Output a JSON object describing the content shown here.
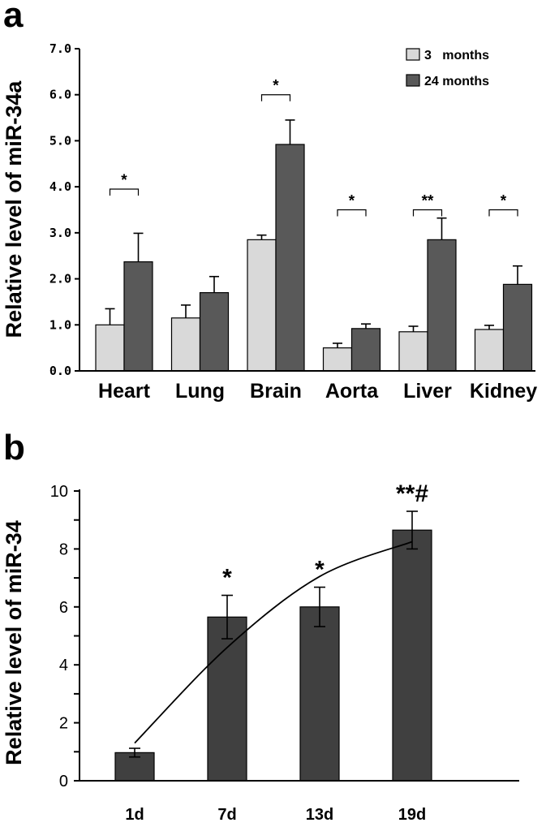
{
  "figure": {
    "panel_a_label": "a",
    "panel_b_label": "b"
  },
  "colors": {
    "light_bar": "#d9d9d9",
    "dark_bar": "#595959",
    "bar_b": "#404040",
    "axis": "#000000"
  },
  "chart_data": [
    {
      "panel": "a",
      "type": "bar",
      "ylabel": "Relative level of miR-34a",
      "xlabel": "",
      "ylim": [
        0,
        7
      ],
      "yticks": [
        "0.0",
        "1.0",
        "2.0",
        "3.0",
        "4.0",
        "5.0",
        "6.0",
        "7.0"
      ],
      "categories": [
        "Heart",
        "Lung",
        "Brain",
        "Aorta",
        "Liver",
        "Kidney"
      ],
      "series": [
        {
          "name": "3   months",
          "color": "#d9d9d9",
          "values": [
            1.0,
            1.15,
            2.85,
            0.5,
            0.85,
            0.9
          ],
          "errors": [
            0.35,
            0.28,
            0.1,
            0.1,
            0.12,
            0.09
          ]
        },
        {
          "name": "24 months",
          "color": "#595959",
          "values": [
            2.37,
            1.7,
            4.92,
            0.92,
            2.85,
            1.88
          ],
          "errors": [
            0.62,
            0.35,
            0.53,
            0.1,
            0.47,
            0.4
          ]
        }
      ],
      "significance": [
        "*",
        "",
        "*",
        "*",
        "**",
        "*"
      ],
      "significance_y": [
        3.95,
        null,
        6.0,
        3.5,
        3.5,
        3.5
      ],
      "legend": "top-right",
      "grid": false
    },
    {
      "panel": "b",
      "type": "bar",
      "ylabel": "Relative level of miR-34",
      "xlabel": "",
      "ylim": [
        0,
        10
      ],
      "yticks": [
        "0",
        "2",
        "4",
        "6",
        "8",
        "10"
      ],
      "categories": [
        "1d",
        "7d",
        "13d",
        "19d"
      ],
      "series": [
        {
          "name": "",
          "color": "#404040",
          "values": [
            0.97,
            5.65,
            6.0,
            8.65
          ],
          "errors": [
            0.15,
            0.75,
            0.68,
            0.65
          ]
        }
      ],
      "significance": [
        "",
        "*",
        "*",
        "**#"
      ],
      "trendline": {
        "type": "fitted curve",
        "x_index_start": 0,
        "x_index_end": 3,
        "y": [
          1.3,
          4.6,
          7.05,
          8.25
        ]
      },
      "grid": false
    }
  ]
}
